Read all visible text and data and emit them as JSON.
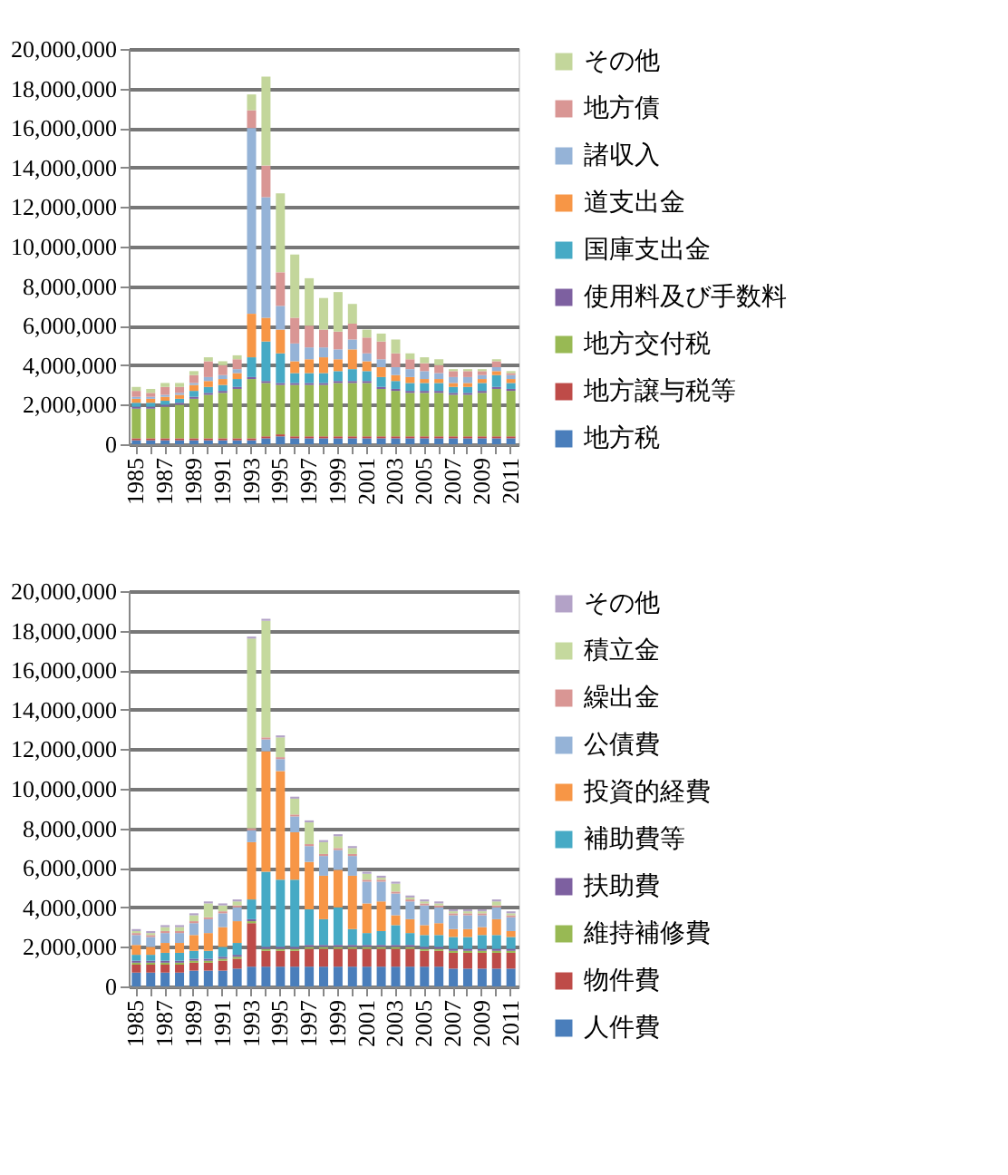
{
  "chart_data": [
    {
      "type": "bar",
      "stacked": true,
      "legend": "right",
      "grid": "y",
      "categories": [
        "1985",
        null,
        "1987",
        null,
        "1989",
        null,
        "1991",
        null,
        "1993",
        null,
        "1995",
        null,
        "1997",
        null,
        "1999",
        null,
        "2001",
        null,
        "2003",
        null,
        "2005",
        null,
        "2007",
        null,
        "2009",
        null,
        "2011"
      ],
      "ylim": [
        0,
        20000000
      ],
      "yticks": [
        0,
        {
          "value": 2000000,
          "label": "2,000,000"
        },
        {
          "value": 4000000,
          "label": "4,000,000"
        },
        {
          "value": 6000000,
          "label": "6,000,000"
        },
        {
          "value": 8000000,
          "label": "8,000,000"
        },
        {
          "value": 10000000,
          "label": "10,000,000"
        },
        {
          "value": 12000000,
          "label": "12,000,000"
        },
        {
          "value": 14000000,
          "label": "14,000,000"
        },
        {
          "value": 16000000,
          "label": "16,000,000"
        },
        {
          "value": 18000000,
          "label": "18,000,000"
        },
        {
          "value": 20000000,
          "label": "20,000,000"
        }
      ],
      "series": [
        {
          "name": "地方税",
          "color": "#4a7ebb",
          "values": [
            200000,
            200000,
            200000,
            200000,
            200000,
            200000,
            200000,
            200000,
            200000,
            300000,
            400000,
            300000,
            300000,
            300000,
            300000,
            300000,
            300000,
            300000,
            300000,
            300000,
            300000,
            300000,
            300000,
            300000,
            300000,
            300000,
            300000
          ]
        },
        {
          "name": "地方譲与税等",
          "color": "#be4b48",
          "values": [
            100000,
            100000,
            100000,
            100000,
            100000,
            100000,
            100000,
            100000,
            100000,
            100000,
            100000,
            100000,
            100000,
            100000,
            100000,
            100000,
            100000,
            100000,
            100000,
            100000,
            100000,
            100000,
            100000,
            100000,
            100000,
            100000,
            100000
          ]
        },
        {
          "name": "地方交付税",
          "color": "#98b954",
          "values": [
            1500000,
            1500000,
            1600000,
            1700000,
            2000000,
            2200000,
            2300000,
            2500000,
            3000000,
            2700000,
            2500000,
            2600000,
            2600000,
            2600000,
            2700000,
            2700000,
            2700000,
            2400000,
            2300000,
            2200000,
            2200000,
            2200000,
            2100000,
            2100000,
            2200000,
            2400000,
            2300000
          ]
        },
        {
          "name": "使用料及び手数料",
          "color": "#7d60a0",
          "values": [
            100000,
            100000,
            100000,
            100000,
            100000,
            100000,
            100000,
            100000,
            100000,
            100000,
            100000,
            100000,
            100000,
            100000,
            100000,
            100000,
            100000,
            100000,
            100000,
            100000,
            100000,
            100000,
            100000,
            100000,
            100000,
            100000,
            100000
          ]
        },
        {
          "name": "国庫支出金",
          "color": "#46aac5",
          "values": [
            200000,
            200000,
            200000,
            200000,
            300000,
            300000,
            300000,
            400000,
            1000000,
            2000000,
            1500000,
            500000,
            500000,
            500000,
            500000,
            600000,
            500000,
            500000,
            400000,
            400000,
            400000,
            400000,
            300000,
            300000,
            400000,
            600000,
            300000
          ]
        },
        {
          "name": "道支出金",
          "color": "#f79646",
          "values": [
            200000,
            200000,
            200000,
            200000,
            300000,
            300000,
            300000,
            300000,
            2200000,
            1200000,
            1200000,
            600000,
            700000,
            800000,
            600000,
            1000000,
            500000,
            500000,
            300000,
            300000,
            200000,
            200000,
            200000,
            200000,
            200000,
            200000,
            200000
          ]
        },
        {
          "name": "諸収入",
          "color": "#95b3d7",
          "values": [
            100000,
            100000,
            100000,
            100000,
            100000,
            200000,
            200000,
            200000,
            9400000,
            6100000,
            1200000,
            900000,
            600000,
            500000,
            500000,
            500000,
            400000,
            400000,
            400000,
            400000,
            400000,
            300000,
            300000,
            300000,
            200000,
            200000,
            200000
          ]
        },
        {
          "name": "地方債",
          "color": "#d99694",
          "values": [
            300000,
            200000,
            400000,
            300000,
            400000,
            800000,
            500000,
            500000,
            900000,
            1600000,
            1700000,
            1300000,
            1100000,
            900000,
            900000,
            800000,
            800000,
            900000,
            700000,
            500000,
            400000,
            400000,
            300000,
            300000,
            200000,
            300000,
            100000
          ]
        },
        {
          "name": "その他",
          "color": "#c3d69b",
          "values": [
            200000,
            200000,
            200000,
            200000,
            200000,
            200000,
            200000,
            200000,
            800000,
            4500000,
            4000000,
            3200000,
            2400000,
            1600000,
            2000000,
            1000000,
            400000,
            400000,
            700000,
            300000,
            300000,
            300000,
            100000,
            100000,
            100000,
            100000,
            100000
          ]
        }
      ]
    },
    {
      "type": "bar",
      "stacked": true,
      "legend": "right",
      "grid": "y",
      "categories": [
        "1985",
        null,
        "1987",
        null,
        "1989",
        null,
        "1991",
        null,
        "1993",
        null,
        "1995",
        null,
        "1997",
        null,
        "1999",
        null,
        "2001",
        null,
        "2003",
        null,
        "2005",
        null,
        "2007",
        null,
        "2009",
        null,
        "2011"
      ],
      "ylim": [
        0,
        20000000
      ],
      "yticks": [
        0,
        {
          "value": 2000000,
          "label": "2,000,000"
        },
        {
          "value": 4000000,
          "label": "4,000,000"
        },
        {
          "value": 6000000,
          "label": "6,000,000"
        },
        {
          "value": 8000000,
          "label": "8,000,000"
        },
        {
          "value": 10000000,
          "label": "10,000,000"
        },
        {
          "value": 12000000,
          "label": "12,000,000"
        },
        {
          "value": 14000000,
          "label": "14,000,000"
        },
        {
          "value": 16000000,
          "label": "16,000,000"
        },
        {
          "value": 18000000,
          "label": "18,000,000"
        },
        {
          "value": 20000000,
          "label": "20,000,000"
        }
      ],
      "series": [
        {
          "name": "人件費",
          "color": "#4a7ebb",
          "values": [
            700000,
            700000,
            700000,
            700000,
            800000,
            800000,
            800000,
            900000,
            1000000,
            1000000,
            1000000,
            1000000,
            1000000,
            1000000,
            1000000,
            1000000,
            1000000,
            1000000,
            1000000,
            1000000,
            1000000,
            1000000,
            900000,
            900000,
            900000,
            900000,
            900000
          ]
        },
        {
          "name": "物件費",
          "color": "#be4b48",
          "values": [
            400000,
            400000,
            400000,
            400000,
            400000,
            400000,
            500000,
            500000,
            2200000,
            800000,
            800000,
            800000,
            900000,
            900000,
            900000,
            900000,
            900000,
            900000,
            900000,
            900000,
            800000,
            800000,
            800000,
            800000,
            800000,
            800000,
            800000
          ]
        },
        {
          "name": "維持補修費",
          "color": "#98b954",
          "values": [
            100000,
            100000,
            100000,
            100000,
            100000,
            100000,
            100000,
            100000,
            100000,
            100000,
            100000,
            100000,
            100000,
            100000,
            100000,
            100000,
            100000,
            100000,
            100000,
            100000,
            100000,
            100000,
            100000,
            100000,
            100000,
            100000,
            100000
          ]
        },
        {
          "name": "扶助費",
          "color": "#7d60a0",
          "values": [
            100000,
            100000,
            100000,
            100000,
            100000,
            100000,
            100000,
            100000,
            100000,
            100000,
            100000,
            100000,
            100000,
            100000,
            100000,
            100000,
            100000,
            100000,
            100000,
            100000,
            100000,
            100000,
            100000,
            100000,
            100000,
            100000,
            100000
          ]
        },
        {
          "name": "補助費等",
          "color": "#46aac5",
          "values": [
            300000,
            300000,
            400000,
            400000,
            400000,
            400000,
            500000,
            600000,
            1000000,
            3800000,
            3400000,
            3400000,
            1800000,
            1300000,
            1900000,
            800000,
            600000,
            700000,
            1000000,
            600000,
            600000,
            600000,
            600000,
            600000,
            700000,
            700000,
            600000
          ]
        },
        {
          "name": "投資的経費",
          "color": "#f79646",
          "values": [
            500000,
            400000,
            500000,
            500000,
            800000,
            900000,
            1000000,
            1100000,
            2900000,
            6100000,
            5500000,
            2400000,
            2400000,
            2200000,
            1900000,
            2700000,
            1500000,
            1500000,
            500000,
            700000,
            500000,
            600000,
            400000,
            400000,
            400000,
            800000,
            300000
          ]
        },
        {
          "name": "公債費",
          "color": "#95b3d7",
          "values": [
            500000,
            500000,
            500000,
            500000,
            600000,
            700000,
            700000,
            700000,
            600000,
            600000,
            600000,
            800000,
            800000,
            1000000,
            1000000,
            1000000,
            1100000,
            1000000,
            1100000,
            900000,
            1000000,
            800000,
            700000,
            700000,
            600000,
            600000,
            700000
          ]
        },
        {
          "name": "繰出金",
          "color": "#d99694",
          "values": [
            100000,
            100000,
            100000,
            100000,
            100000,
            100000,
            100000,
            100000,
            100000,
            100000,
            100000,
            100000,
            100000,
            100000,
            100000,
            100000,
            100000,
            100000,
            100000,
            100000,
            100000,
            100000,
            100000,
            100000,
            100000,
            100000,
            100000
          ]
        },
        {
          "name": "積立金",
          "color": "#c5d99e",
          "values": [
            100000,
            100000,
            200000,
            200000,
            300000,
            700000,
            300000,
            200000,
            9600000,
            5900000,
            1000000,
            800000,
            1100000,
            600000,
            600000,
            300000,
            300000,
            100000,
            400000,
            100000,
            100000,
            100000,
            100000,
            100000,
            100000,
            200000,
            100000
          ]
        },
        {
          "name": "その他",
          "color": "#b3a2c7",
          "values": [
            100000,
            100000,
            100000,
            100000,
            100000,
            100000,
            100000,
            100000,
            100000,
            100000,
            100000,
            100000,
            100000,
            100000,
            100000,
            100000,
            100000,
            100000,
            100000,
            100000,
            100000,
            100000,
            100000,
            100000,
            100000,
            100000,
            100000
          ]
        }
      ]
    }
  ]
}
